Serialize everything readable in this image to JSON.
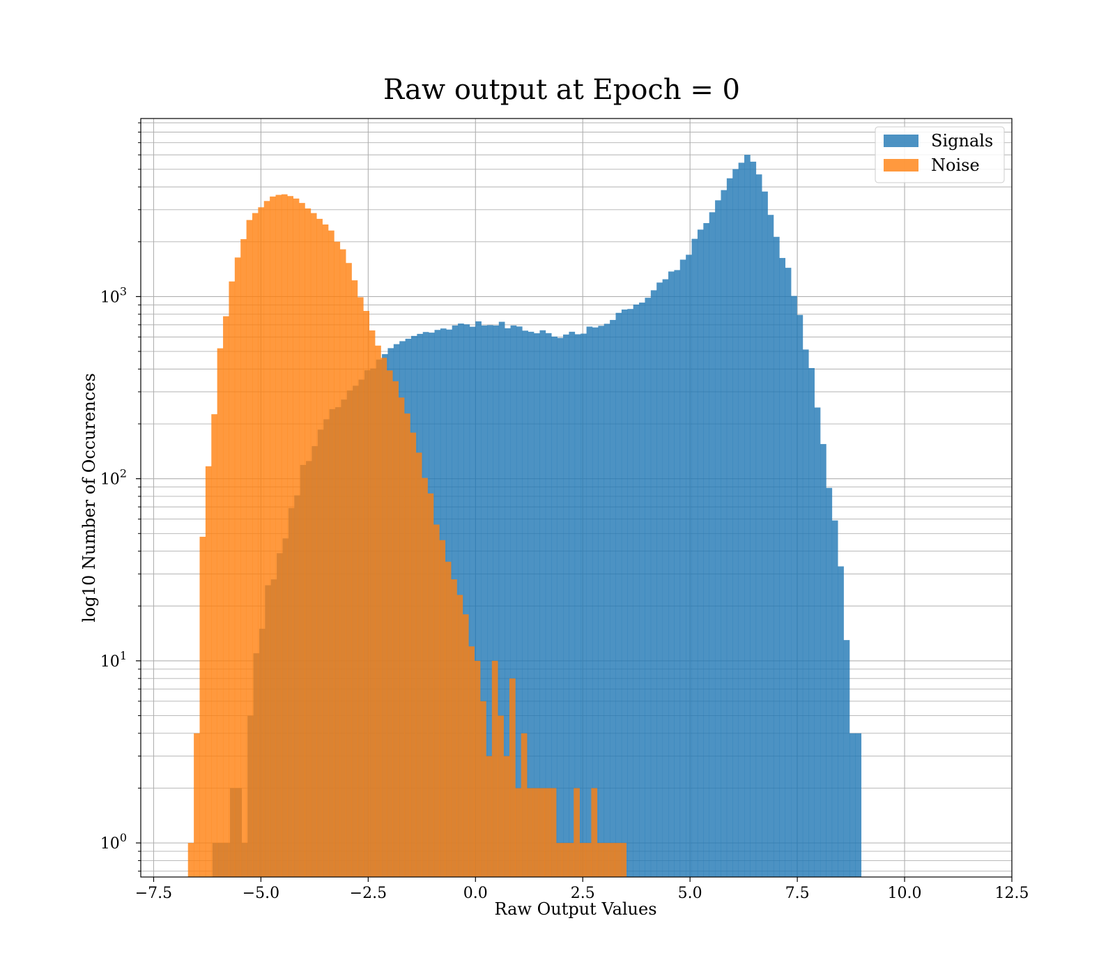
{
  "chart_data": {
    "type": "bar",
    "title": "Raw output at Epoch = 0",
    "xlabel": "Raw Output Values",
    "ylabel": "log10 Number of Occurences",
    "xlim": [
      -7.8,
      12.5
    ],
    "ylim": [
      0.65,
      9500
    ],
    "yscale": "log",
    "grid": true,
    "legend_position": "top-right",
    "x_ticks": [
      "-7.5",
      "-5.0",
      "-2.5",
      "0.0",
      "2.5",
      "5.0",
      "7.5",
      "10.0",
      "12.5"
    ],
    "x_tick_values": [
      -7.5,
      -5.0,
      -2.5,
      0.0,
      2.5,
      5.0,
      7.5,
      10.0,
      12.5
    ],
    "y_ticks": [
      {
        "base": "10",
        "exp": "0",
        "value": 1
      },
      {
        "base": "10",
        "exp": "1",
        "value": 10
      },
      {
        "base": "10",
        "exp": "2",
        "value": 100
      },
      {
        "base": "10",
        "exp": "3",
        "value": 1000
      }
    ],
    "series": [
      {
        "name": "Signals",
        "color": "#1f77b4",
        "opacity": 0.8,
        "x_start": -6.13,
        "bin_width": 0.1362,
        "values": [
          1,
          1,
          1,
          2,
          2,
          1,
          5,
          11,
          15,
          26,
          28,
          39,
          47,
          69,
          81,
          119,
          125,
          151,
          186,
          212,
          241,
          247,
          272,
          305,
          324,
          350,
          394,
          403,
          451,
          483,
          521,
          548,
          569,
          587,
          608,
          624,
          639,
          634,
          656,
          668,
          659,
          694,
          711,
          704,
          683,
          731,
          694,
          697,
          694,
          727,
          670,
          694,
          685,
          650,
          641,
          629,
          653,
          630,
          603,
          593,
          619,
          641,
          621,
          626,
          684,
          677,
          691,
          709,
          744,
          814,
          849,
          855,
          904,
          927,
          985,
          1083,
          1194,
          1245,
          1373,
          1398,
          1595,
          1697,
          2075,
          2332,
          2532,
          2905,
          3378,
          3843,
          4462,
          5014,
          5433,
          6003,
          5505,
          4687,
          3774,
          2809,
          2128,
          1629,
          1439,
          1008,
          793,
          512,
          405,
          246,
          155,
          89,
          59,
          33,
          13,
          4,
          4
        ]
      },
      {
        "name": "Noise",
        "color": "#ff7f0e",
        "opacity": 0.8,
        "x_start": -6.7,
        "bin_width": 0.1362,
        "values": [
          1,
          4,
          48,
          117,
          226,
          520,
          780,
          1211,
          1639,
          2067,
          2633,
          2875,
          3093,
          3348,
          3543,
          3618,
          3643,
          3564,
          3454,
          3266,
          3047,
          2874,
          2672,
          2488,
          2305,
          2002,
          1818,
          1529,
          1228,
          991,
          834,
          652,
          538,
          461,
          393,
          343,
          279,
          228,
          179,
          139,
          101,
          83,
          56,
          46,
          35,
          28,
          23,
          18,
          12,
          10,
          6,
          3,
          10,
          5,
          3,
          8,
          2,
          4,
          2,
          2,
          2,
          2,
          2,
          1,
          1,
          1,
          2,
          1,
          1,
          2,
          1,
          1,
          1,
          1,
          1
        ]
      }
    ]
  }
}
